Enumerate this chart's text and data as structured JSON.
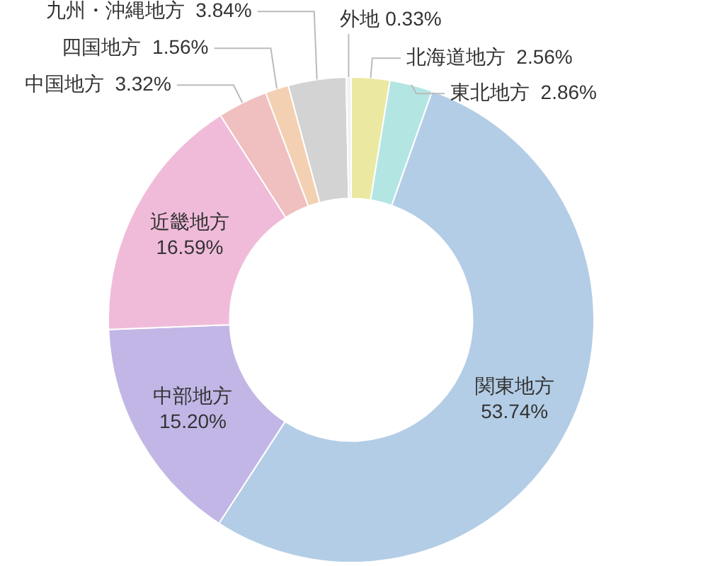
{
  "chart_data": {
    "type": "donut",
    "categories": [
      "北海道地方",
      "東北地方",
      "関東地方",
      "中部地方",
      "近畿地方",
      "中国地方",
      "四国地方",
      "九州・沖縄地方",
      "外地"
    ],
    "values": [
      2.56,
      2.86,
      53.74,
      15.2,
      16.59,
      3.32,
      1.56,
      3.84,
      0.33
    ],
    "value_labels": [
      "2.56%",
      "2.86%",
      "53.74%",
      "15.20%",
      "16.59%",
      "3.32%",
      "1.56%",
      "3.84%",
      "0.33%"
    ],
    "colors": [
      "#ebe8a2",
      "#b3e5e3",
      "#b3cde6",
      "#c2b6e6",
      "#f0bbd9",
      "#f0bfc0",
      "#f3d0b2",
      "#d3d3d3",
      "#f2f2f2"
    ],
    "legend": false
  }
}
